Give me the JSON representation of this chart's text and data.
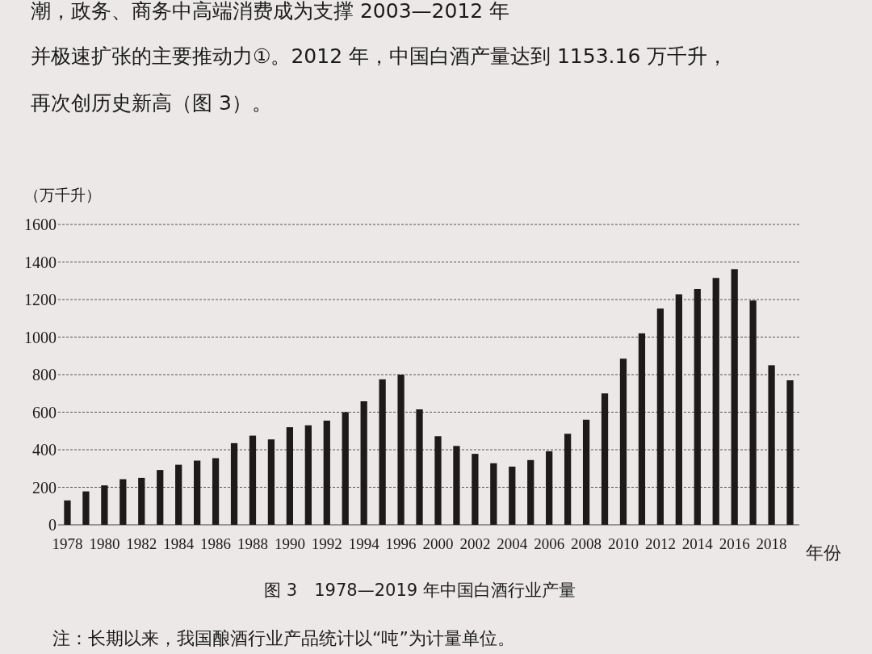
{
  "chart_data": {
    "type": "bar",
    "title": "图 3　1978—2019 年中国白酒行业产量",
    "ylabel": "（万千升）",
    "xlabel": "年份",
    "annotations": [
      "潮，政务、商务中高端消费成为支撑 2003—2012 年",
      "并极速扩张的主要推动力①。2012 年，中国白酒产量达到 1153.16 万千升，",
      "再次创历史新高（图 3）。",
      "注：长期以来，我国酿酒行业产品统计以“吨”为计量单位。"
    ],
    "categories": [
      "1978",
      null,
      "1980",
      null,
      "1982",
      null,
      "1984",
      null,
      "1986",
      null,
      "1988",
      null,
      "1990",
      null,
      "1992",
      null,
      "1994",
      null,
      "1996",
      null,
      "2000",
      null,
      "2002",
      null,
      "2004",
      null,
      "2006",
      null,
      "2008",
      null,
      "2010",
      null,
      "2012",
      null,
      "2014",
      null,
      "2016",
      null,
      "2018",
      null
    ],
    "values": [
      130,
      178,
      210,
      243,
      250,
      292,
      320,
      342,
      355,
      435,
      475,
      455,
      520,
      530,
      555,
      600,
      658,
      775,
      800,
      615,
      472,
      420,
      378,
      328,
      310,
      345,
      392,
      485,
      560,
      700,
      885,
      1020,
      1152,
      1228,
      1256,
      1315,
      1362,
      1195,
      850,
      770
    ],
    "color": "#1e1a1a",
    "ylim": [
      0,
      1600
    ],
    "yticks": [
      0,
      200,
      400,
      600,
      800,
      1000,
      1200,
      1400,
      1600
    ],
    "grid": "y"
  }
}
